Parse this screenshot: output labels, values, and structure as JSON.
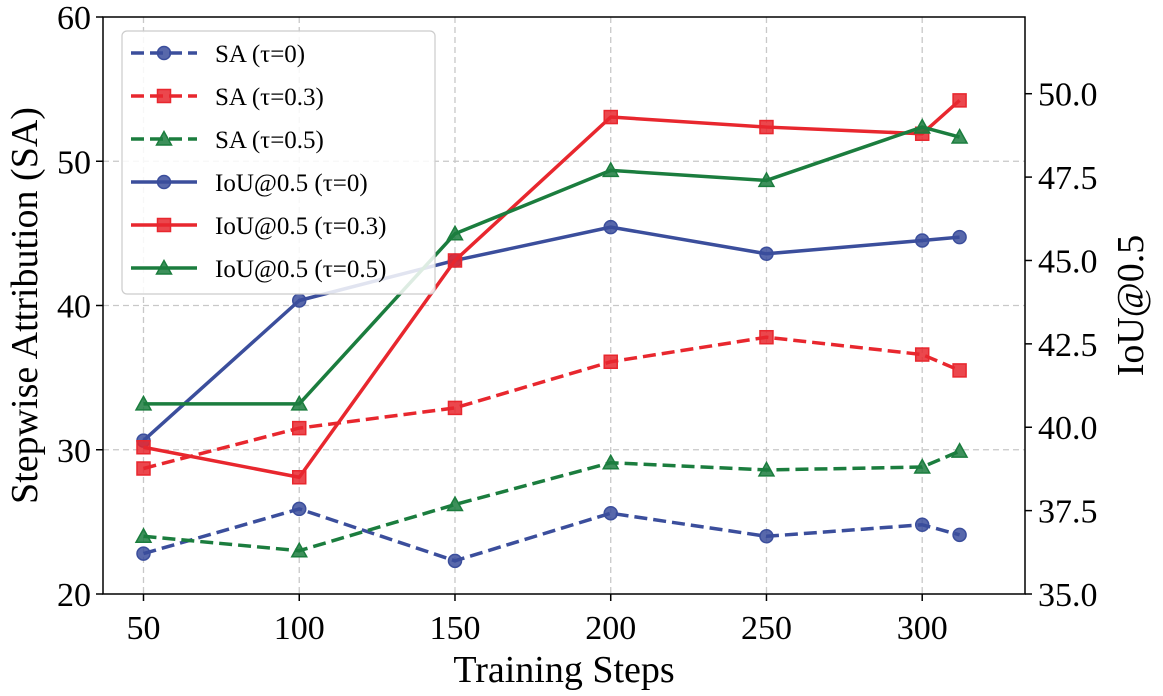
{
  "chart_data": {
    "type": "line",
    "xlabel": "Training Steps",
    "ylabel": "Stepwise Attribution (SA)",
    "y2label": "IoU@0.5",
    "x": [
      50,
      100,
      150,
      200,
      250,
      300,
      312
    ],
    "xticks": [
      50,
      100,
      150,
      200,
      250,
      300
    ],
    "xticklabels": [
      "50",
      "100",
      "150",
      "200",
      "250",
      "300"
    ],
    "xlim": [
      37,
      333
    ],
    "ylim": [
      20,
      60
    ],
    "yticks": [
      20,
      30,
      40,
      50,
      60
    ],
    "yticklabels": [
      "20",
      "30",
      "40",
      "50",
      "60"
    ],
    "y2lim": [
      35,
      52.3
    ],
    "y2ticks": [
      35,
      37.5,
      40,
      42.5,
      45,
      47.5,
      50
    ],
    "y2ticklabels": [
      "35.0",
      "37.5",
      "40.0",
      "42.5",
      "45.0",
      "47.5",
      "50.0"
    ],
    "grid": true,
    "legend_position": "top-left",
    "series": [
      {
        "name": "SA (τ=0)",
        "axis": "left",
        "style": "dashed",
        "marker": "circle",
        "color": "#3b4e9c",
        "values": [
          22.8,
          25.9,
          22.3,
          25.6,
          24.0,
          24.8,
          24.1
        ]
      },
      {
        "name": "SA (τ=0.3)",
        "axis": "left",
        "style": "dashed",
        "marker": "square",
        "color": "#e8272e",
        "values": [
          28.7,
          31.5,
          32.9,
          36.1,
          37.8,
          36.6,
          35.5
        ]
      },
      {
        "name": "SA (τ=0.5)",
        "axis": "left",
        "style": "dashed",
        "marker": "triangle",
        "color": "#1b7d3e",
        "values": [
          24.0,
          23.0,
          26.2,
          29.1,
          28.6,
          28.8,
          29.9
        ]
      },
      {
        "name": "IoU@0.5 (τ=0)",
        "axis": "right",
        "style": "solid",
        "marker": "circle",
        "color": "#3b4e9c",
        "values": [
          39.6,
          43.8,
          45.0,
          46.0,
          45.2,
          45.6,
          45.7
        ]
      },
      {
        "name": "IoU@0.5 (τ=0.3)",
        "axis": "right",
        "style": "solid",
        "marker": "square",
        "color": "#e8272e",
        "values": [
          39.4,
          38.5,
          45.0,
          49.3,
          49.0,
          48.8,
          49.8
        ]
      },
      {
        "name": "IoU@0.5 (τ=0.5)",
        "axis": "right",
        "style": "solid",
        "marker": "triangle",
        "color": "#1b7d3e",
        "values": [
          40.7,
          40.7,
          45.8,
          47.7,
          47.4,
          49.0,
          48.7
        ]
      }
    ]
  }
}
